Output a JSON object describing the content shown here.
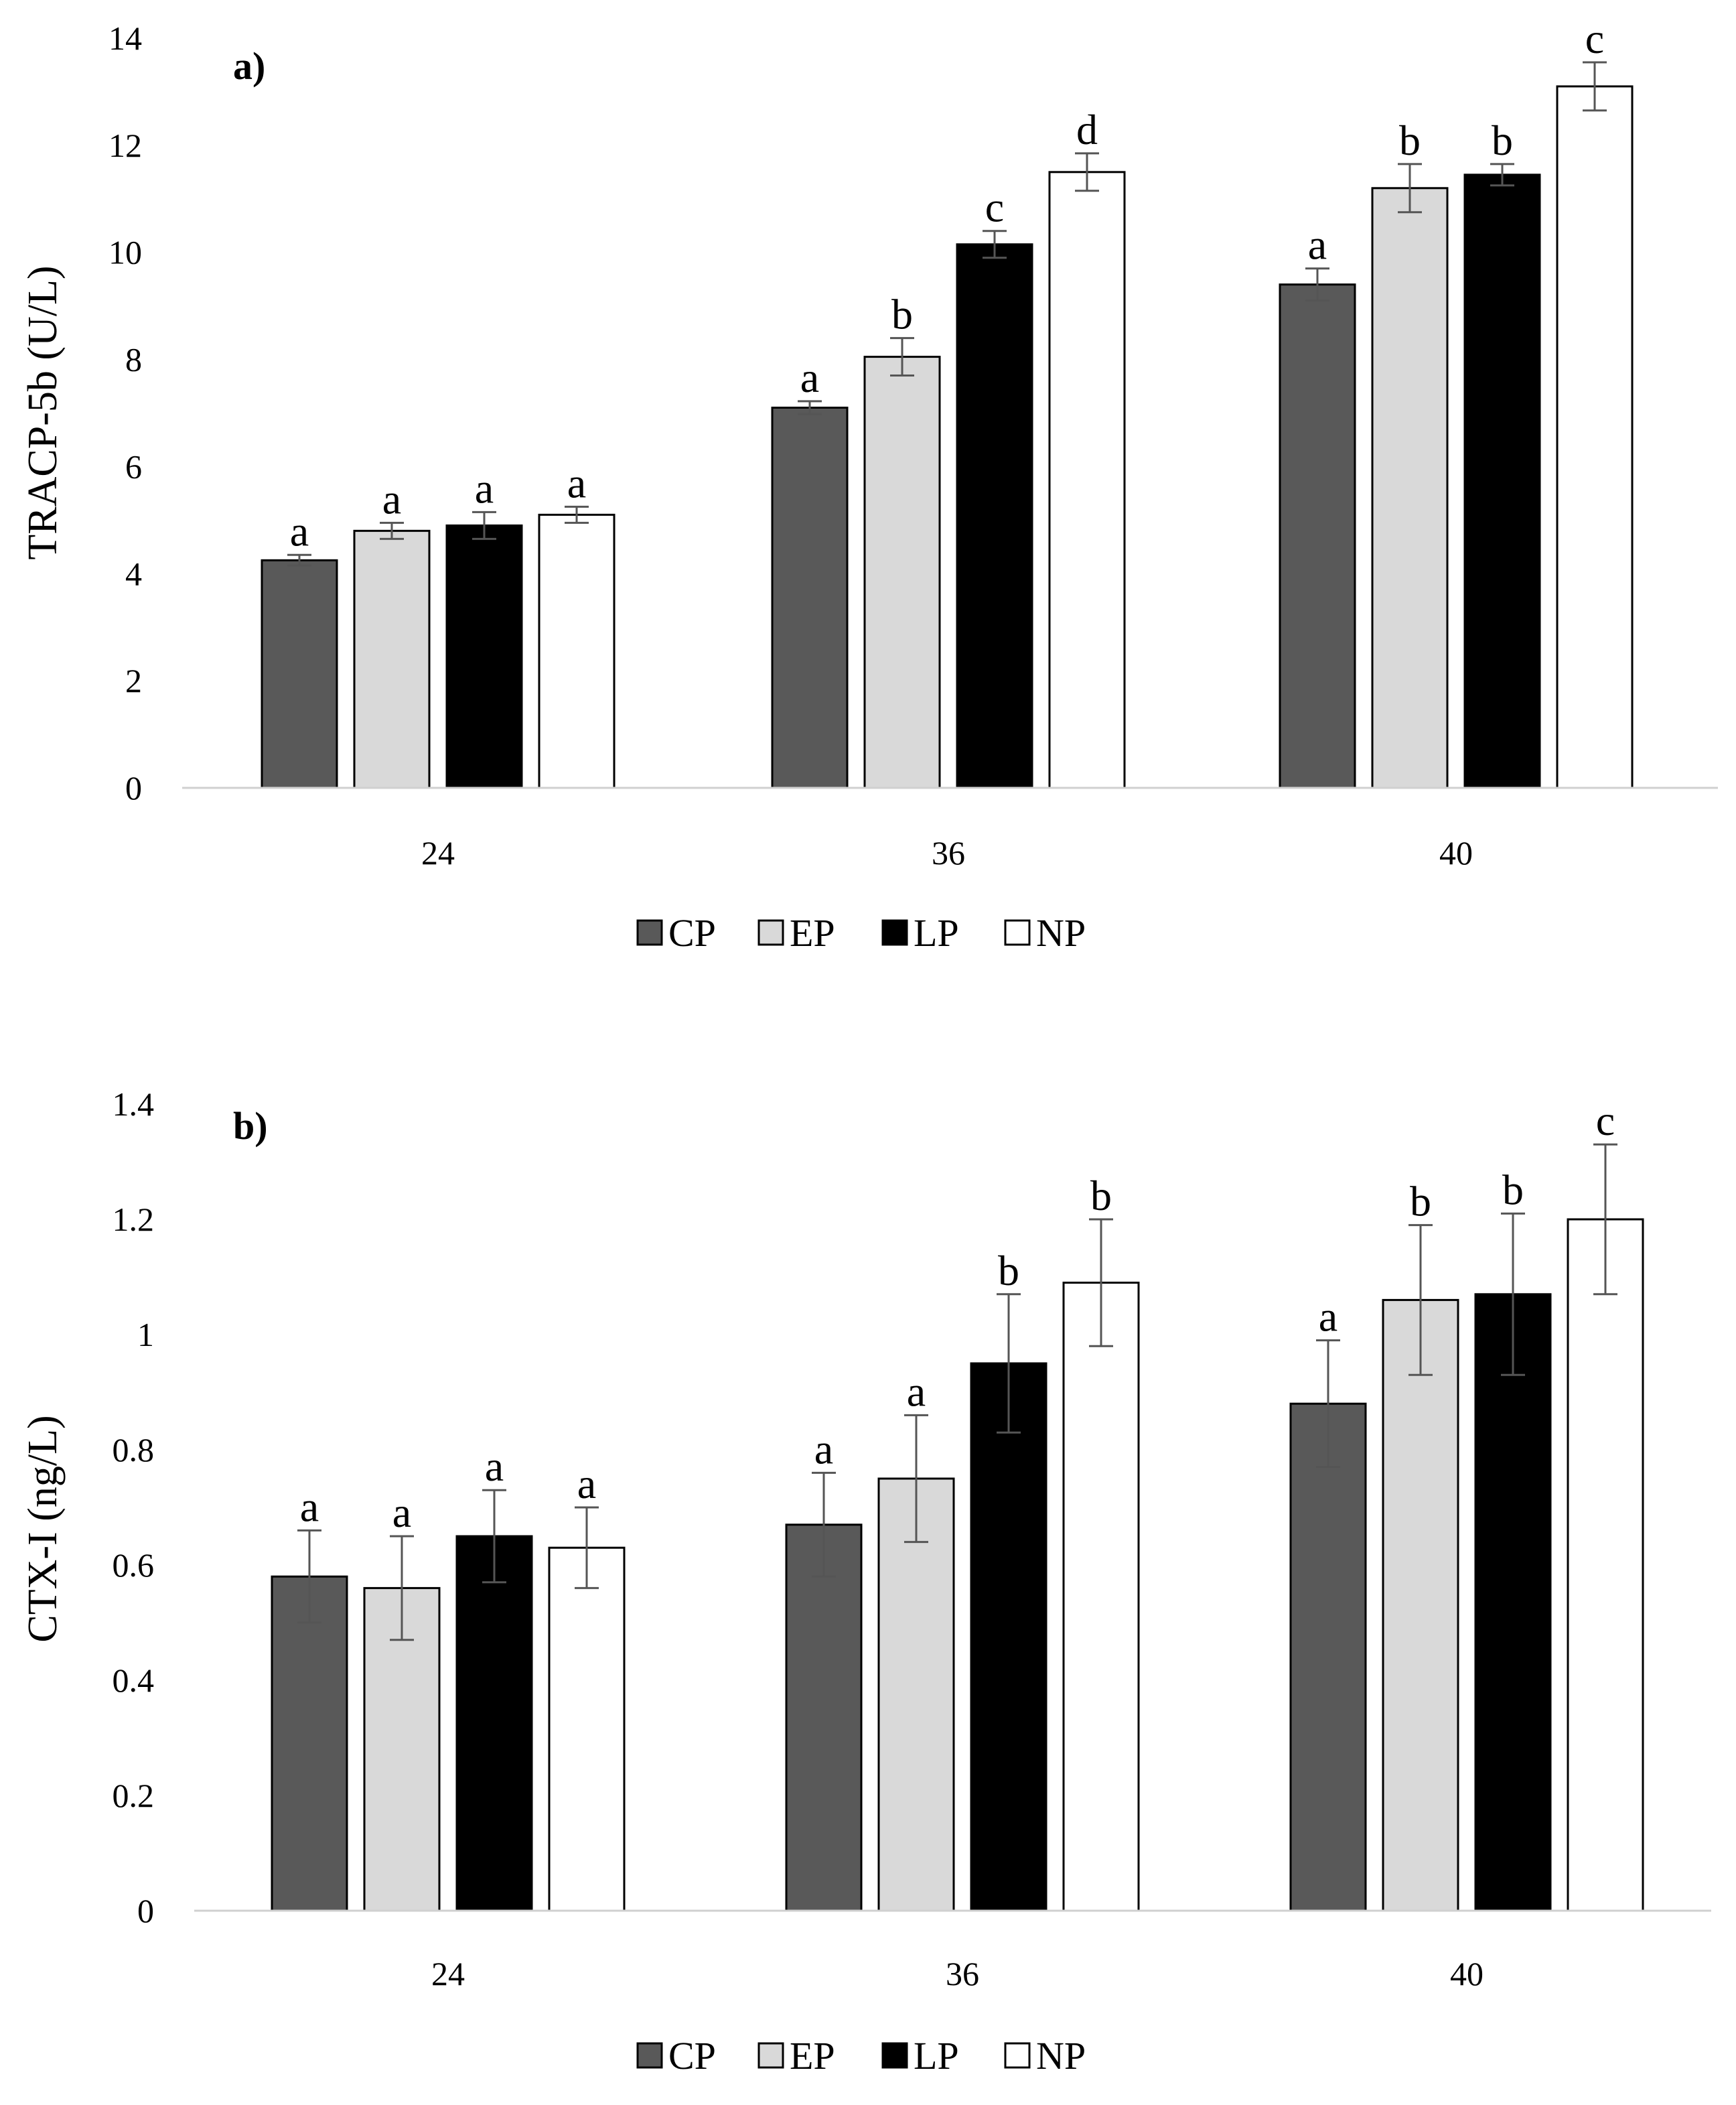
{
  "chart_data": [
    {
      "type": "bar",
      "panel_label": "a)",
      "title": "",
      "xlabel": "",
      "ylabel": "TRACP-5b (U/L)",
      "ylim": [
        0,
        14
      ],
      "yticks": [
        0,
        2,
        4,
        6,
        8,
        10,
        12,
        14
      ],
      "ytick_labels": [
        "0",
        "2",
        "4",
        "6",
        "8",
        "10",
        "12",
        "14"
      ],
      "categories": [
        "24",
        "36",
        "40"
      ],
      "grid": false,
      "legend_position": "bottom",
      "series": [
        {
          "name": "CP",
          "color": "#595959",
          "values": [
            4.25,
            7.1,
            9.4
          ],
          "errors": [
            0.1,
            0.12,
            0.3
          ],
          "labels": [
            "a",
            "a",
            "a"
          ]
        },
        {
          "name": "EP",
          "color": "#d9d9d9",
          "values": [
            4.8,
            8.05,
            11.2
          ],
          "errors": [
            0.15,
            0.35,
            0.45
          ],
          "labels": [
            "a",
            "b",
            "b"
          ]
        },
        {
          "name": "LP",
          "color": "#000000",
          "values": [
            4.9,
            10.15,
            11.45
          ],
          "errors": [
            0.25,
            0.25,
            0.2
          ],
          "labels": [
            "a",
            "c",
            "b"
          ]
        },
        {
          "name": "NP",
          "color": "#ffffff",
          "values": [
            5.1,
            11.5,
            13.1
          ],
          "errors": [
            0.15,
            0.35,
            0.45
          ],
          "labels": [
            "a",
            "d",
            "c"
          ]
        }
      ]
    },
    {
      "type": "bar",
      "panel_label": "b)",
      "title": "",
      "xlabel": "",
      "ylabel": "CTX-I (ng/L)",
      "ylim": [
        0,
        1.4
      ],
      "yticks": [
        0,
        0.2,
        0.4,
        0.6,
        0.8,
        1,
        1.2,
        1.4
      ],
      "ytick_labels": [
        "0",
        "0.2",
        "0.4",
        "0.6",
        "0.8",
        "1",
        "1.2",
        "1.4"
      ],
      "categories": [
        "24",
        "36",
        "40"
      ],
      "grid": false,
      "legend_position": "bottom",
      "series": [
        {
          "name": "CP",
          "color": "#595959",
          "values": [
            0.58,
            0.67,
            0.88
          ],
          "errors": [
            0.08,
            0.09,
            0.11
          ],
          "labels": [
            "a",
            "a",
            "a"
          ]
        },
        {
          "name": "EP",
          "color": "#d9d9d9",
          "values": [
            0.56,
            0.75,
            1.06
          ],
          "errors": [
            0.09,
            0.11,
            0.13
          ],
          "labels": [
            "a",
            "a",
            "b"
          ]
        },
        {
          "name": "LP",
          "color": "#000000",
          "values": [
            0.65,
            0.95,
            1.07
          ],
          "errors": [
            0.08,
            0.12,
            0.14
          ],
          "labels": [
            "a",
            "b",
            "b"
          ]
        },
        {
          "name": "NP",
          "color": "#ffffff",
          "values": [
            0.63,
            1.09,
            1.2
          ],
          "errors": [
            0.07,
            0.11,
            0.13
          ],
          "labels": [
            "a",
            "b",
            "c"
          ]
        }
      ]
    }
  ]
}
